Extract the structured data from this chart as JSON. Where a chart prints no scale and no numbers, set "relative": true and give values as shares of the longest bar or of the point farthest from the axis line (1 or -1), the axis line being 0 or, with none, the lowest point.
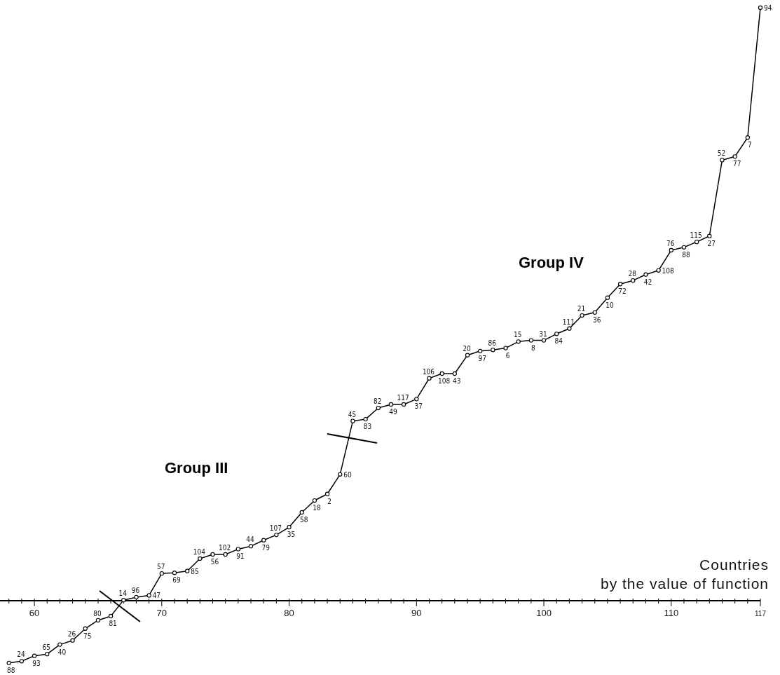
{
  "chart_data": {
    "type": "line",
    "relative": true,
    "xlabel": "Countries\nby the value of function",
    "marker": "circle",
    "line_style": "solid",
    "grid": false,
    "legend": false,
    "annotations": [
      "Group III",
      "Group IV",
      {
        "text": "88",
        "x": 58,
        "y": -0.105
      },
      {
        "text": "24",
        "x": 59,
        "y": -0.102
      },
      {
        "text": "93",
        "x": 60,
        "y": -0.093
      },
      {
        "text": "65",
        "x": 61,
        "y": -0.09
      },
      {
        "text": "40",
        "x": 62,
        "y": -0.074
      },
      {
        "text": "26",
        "x": 63,
        "y": -0.067
      },
      {
        "text": "75",
        "x": 64,
        "y": -0.047
      },
      {
        "text": "80",
        "x": 65,
        "y": -0.033
      },
      {
        "text": "81",
        "x": 66,
        "y": -0.026
      },
      {
        "text": "14",
        "x": 67,
        "y": 0.001
      },
      {
        "text": "96",
        "x": 68,
        "y": 0.006
      },
      {
        "text": "47",
        "x": 69,
        "y": 0.009
      },
      {
        "text": "57",
        "x": 70,
        "y": 0.046
      },
      {
        "text": "69",
        "x": 71,
        "y": 0.047
      },
      {
        "text": "85",
        "x": 72,
        "y": 0.05
      },
      {
        "text": "104",
        "x": 73,
        "y": 0.071
      },
      {
        "text": "56",
        "x": 74,
        "y": 0.078
      },
      {
        "text": "102",
        "x": 75,
        "y": 0.078
      },
      {
        "text": "91",
        "x": 76,
        "y": 0.087
      },
      {
        "text": "44",
        "x": 77,
        "y": 0.092
      },
      {
        "text": "79",
        "x": 78,
        "y": 0.102
      },
      {
        "text": "107",
        "x": 79,
        "y": 0.111
      },
      {
        "text": "35",
        "x": 80,
        "y": 0.124
      },
      {
        "text": "58",
        "x": 81,
        "y": 0.149
      },
      {
        "text": "18",
        "x": 82,
        "y": 0.169
      },
      {
        "text": "2",
        "x": 83,
        "y": 0.18
      },
      {
        "text": "60",
        "x": 84,
        "y": 0.213
      },
      {
        "text": "45",
        "x": 85,
        "y": 0.303
      },
      {
        "text": "83",
        "x": 86,
        "y": 0.306
      },
      {
        "text": "82",
        "x": 87,
        "y": 0.325
      },
      {
        "text": "49",
        "x": 88,
        "y": 0.331
      },
      {
        "text": "117",
        "x": 89,
        "y": 0.331
      },
      {
        "text": "37",
        "x": 90,
        "y": 0.34
      },
      {
        "text": "106",
        "x": 91,
        "y": 0.375
      },
      {
        "text": "108",
        "x": 92,
        "y": 0.383
      },
      {
        "text": "43",
        "x": 93,
        "y": 0.383
      },
      {
        "text": "20",
        "x": 94,
        "y": 0.414
      },
      {
        "text": "97",
        "x": 95,
        "y": 0.421
      },
      {
        "text": "86",
        "x": 96,
        "y": 0.423
      },
      {
        "text": "6",
        "x": 97,
        "y": 0.426
      },
      {
        "text": "15",
        "x": 98,
        "y": 0.437
      },
      {
        "text": "8",
        "x": 99,
        "y": 0.439
      },
      {
        "text": "31",
        "x": 100,
        "y": 0.439
      },
      {
        "text": "84",
        "x": 101,
        "y": 0.45
      },
      {
        "text": "111",
        "x": 102,
        "y": 0.459
      },
      {
        "text": "21",
        "x": 103,
        "y": 0.481
      },
      {
        "text": "36",
        "x": 104,
        "y": 0.486
      },
      {
        "text": "10",
        "x": 105,
        "y": 0.511
      },
      {
        "text": "72",
        "x": 106,
        "y": 0.534
      },
      {
        "text": "28",
        "x": 107,
        "y": 0.54
      },
      {
        "text": "42",
        "x": 108,
        "y": 0.55
      },
      {
        "text": "108",
        "x": 109,
        "y": 0.557
      },
      {
        "text": "76",
        "x": 110,
        "y": 0.591
      },
      {
        "text": "88",
        "x": 111,
        "y": 0.596
      },
      {
        "text": "115",
        "x": 112,
        "y": 0.605
      },
      {
        "text": "27",
        "x": 113,
        "y": 0.615
      },
      {
        "text": "52",
        "x": 114,
        "y": 0.743
      },
      {
        "text": "77",
        "x": 115,
        "y": 0.749
      },
      {
        "text": "7",
        "x": 116,
        "y": 0.781
      },
      {
        "text": "94",
        "x": 117,
        "y": 1
      }
    ],
    "xlim": [
      57.3,
      117
    ],
    "xticks": [
      {
        "value": 58,
        "label": null
      },
      {
        "value": 59,
        "label": null
      },
      60,
      {
        "value": 61,
        "label": null
      },
      {
        "value": 62,
        "label": null
      },
      {
        "value": 63,
        "label": null
      },
      {
        "value": 64,
        "label": null
      },
      {
        "value": 65,
        "label": null
      },
      {
        "value": 66,
        "label": null
      },
      {
        "value": 67,
        "label": null
      },
      {
        "value": 68,
        "label": null
      },
      {
        "value": 69,
        "label": null
      },
      70,
      {
        "value": 71,
        "label": null
      },
      {
        "value": 72,
        "label": null
      },
      {
        "value": 73,
        "label": null
      },
      {
        "value": 74,
        "label": null
      },
      {
        "value": 75,
        "label": null
      },
      {
        "value": 76,
        "label": null
      },
      {
        "value": 77,
        "label": null
      },
      {
        "value": 78,
        "label": null
      },
      {
        "value": 79,
        "label": null
      },
      80,
      {
        "value": 81,
        "label": null
      },
      {
        "value": 82,
        "label": null
      },
      {
        "value": 83,
        "label": null
      },
      {
        "value": 84,
        "label": null
      },
      {
        "value": 85,
        "label": null
      },
      {
        "value": 86,
        "label": null
      },
      {
        "value": 87,
        "label": null
      },
      {
        "value": 88,
        "label": null
      },
      {
        "value": 89,
        "label": null
      },
      90,
      {
        "value": 91,
        "label": null
      },
      {
        "value": 92,
        "label": null
      },
      {
        "value": 93,
        "label": null
      },
      {
        "value": 94,
        "label": null
      },
      {
        "value": 95,
        "label": null
      },
      {
        "value": 96,
        "label": null
      },
      {
        "value": 97,
        "label": null
      },
      {
        "value": 98,
        "label": null
      },
      {
        "value": 99,
        "label": null
      },
      100,
      {
        "value": 101,
        "label": null
      },
      {
        "value": 102,
        "label": null
      },
      {
        "value": 103,
        "label": null
      },
      {
        "value": 104,
        "label": null
      },
      {
        "value": 105,
        "label": null
      },
      {
        "value": 106,
        "label": null
      },
      {
        "value": 107,
        "label": null
      },
      {
        "value": 108,
        "label": null
      },
      {
        "value": 109,
        "label": null
      },
      110,
      {
        "value": 111,
        "label": null
      },
      {
        "value": 112,
        "label": null
      },
      {
        "value": 113,
        "label": null
      },
      {
        "value": 114,
        "label": null
      },
      {
        "value": 115,
        "label": null
      },
      {
        "value": 116,
        "label": null
      },
      117
    ],
    "x": [
      58,
      59,
      60,
      61,
      62,
      63,
      64,
      65,
      66,
      67,
      68,
      69,
      70,
      71,
      72,
      73,
      74,
      75,
      76,
      77,
      78,
      79,
      80,
      81,
      82,
      83,
      84,
      85,
      86,
      87,
      88,
      89,
      90,
      91,
      92,
      93,
      94,
      95,
      96,
      97,
      98,
      99,
      100,
      101,
      102,
      103,
      104,
      105,
      106,
      107,
      108,
      109,
      110,
      111,
      112,
      113,
      114,
      115,
      116,
      117
    ],
    "series": [
      {
        "color": "#000000",
        "values": [
          -0.105,
          -0.102,
          -0.093,
          -0.09,
          -0.074,
          -0.067,
          -0.047,
          -0.033,
          -0.026,
          0.001,
          0.006,
          0.009,
          0.046,
          0.047,
          0.05,
          0.071,
          0.078,
          0.078,
          0.087,
          0.092,
          0.102,
          0.111,
          0.124,
          0.149,
          0.169,
          0.18,
          0.213,
          0.303,
          0.306,
          0.325,
          0.331,
          0.331,
          0.34,
          0.375,
          0.383,
          0.383,
          0.414,
          0.421,
          0.423,
          0.426,
          0.437,
          0.439,
          0.439,
          0.45,
          0.459,
          0.481,
          0.486,
          0.511,
          0.534,
          0.54,
          0.55,
          0.557,
          0.591,
          0.596,
          0.605,
          0.615,
          0.743,
          0.749,
          0.781,
          1
        ]
      }
    ]
  }
}
